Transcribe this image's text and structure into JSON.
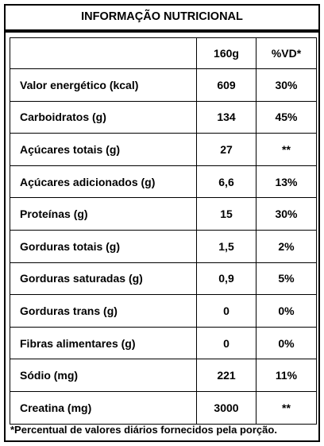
{
  "title": "INFORMAÇÃO NUTRICIONAL",
  "header": {
    "label": "",
    "portion": "160g",
    "dv": "%VD*"
  },
  "rows": [
    {
      "label": "Valor energético (kcal)",
      "portion": "609",
      "dv": "30%"
    },
    {
      "label": "Carboidratos (g)",
      "portion": "134",
      "dv": "45%"
    },
    {
      "label": "Açúcares totais (g)",
      "portion": "27",
      "dv": "**"
    },
    {
      "label": "Açúcares adicionados (g)",
      "portion": "6,6",
      "dv": "13%"
    },
    {
      "label": "Proteínas (g)",
      "portion": "15",
      "dv": "30%"
    },
    {
      "label": "Gorduras totais (g)",
      "portion": "1,5",
      "dv": "2%"
    },
    {
      "label": "Gorduras saturadas (g)",
      "portion": "0,9",
      "dv": "5%"
    },
    {
      "label": "Gorduras trans (g)",
      "portion": "0",
      "dv": "0%"
    },
    {
      "label": "Fibras alimentares (g)",
      "portion": "0",
      "dv": "0%"
    },
    {
      "label": "Sódio (mg)",
      "portion": "221",
      "dv": "11%"
    },
    {
      "label": "Creatina (mg)",
      "portion": "3000",
      "dv": "**"
    }
  ],
  "footnote": "*Percentual de valores diários fornecidos pela porção."
}
